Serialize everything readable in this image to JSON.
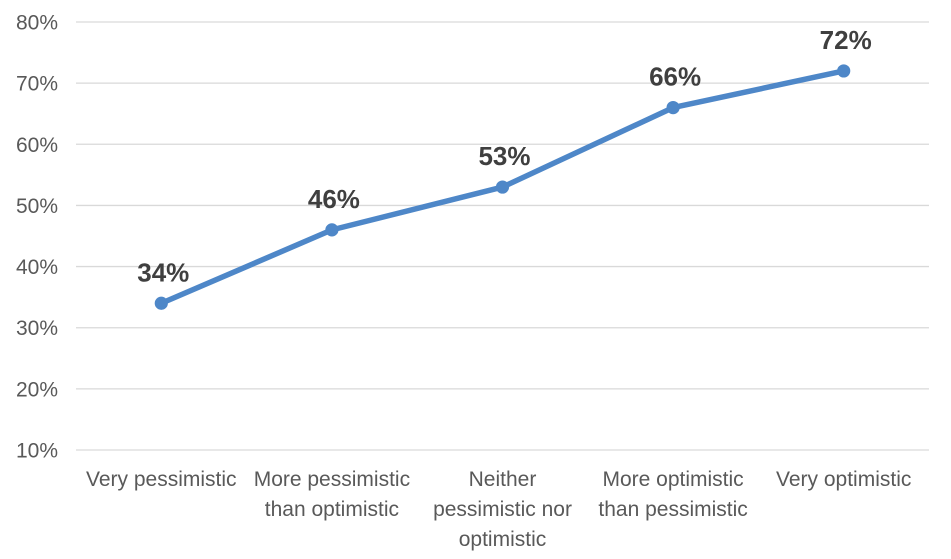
{
  "chart_data": {
    "type": "line",
    "title": "",
    "xlabel": "",
    "ylabel": "",
    "categories": [
      "Very pessimistic",
      "More pessimistic than optimistic",
      "Neither pessimistic nor optimistic",
      "More optimistic than pessimistic",
      "Very optimistic"
    ],
    "categories_wrapped": [
      "Very pessimistic",
      "More pessimistic\nthan optimistic",
      "Neither\npessimistic nor\noptimistic",
      "More optimistic\nthan pessimistic",
      "Very optimistic"
    ],
    "values": [
      34,
      46,
      53,
      66,
      72
    ],
    "data_labels": [
      "34%",
      "46%",
      "53%",
      "66%",
      "72%"
    ],
    "series_name": "",
    "legend_position": "none",
    "grid": true,
    "ylim": [
      10,
      80
    ],
    "y_tick_values": [
      10,
      20,
      30,
      40,
      50,
      60,
      70,
      80
    ],
    "y_tick_labels": [
      "10%",
      "20%",
      "30%",
      "40%",
      "50%",
      "60%",
      "70%",
      "80%"
    ],
    "colors": {
      "line": "#4E87C8",
      "marker": "#4E87C8",
      "data_label": "#3F3F3F",
      "axis_text": "#595959",
      "gridline": "#D9D9D9",
      "background": "#FFFFFF"
    }
  }
}
